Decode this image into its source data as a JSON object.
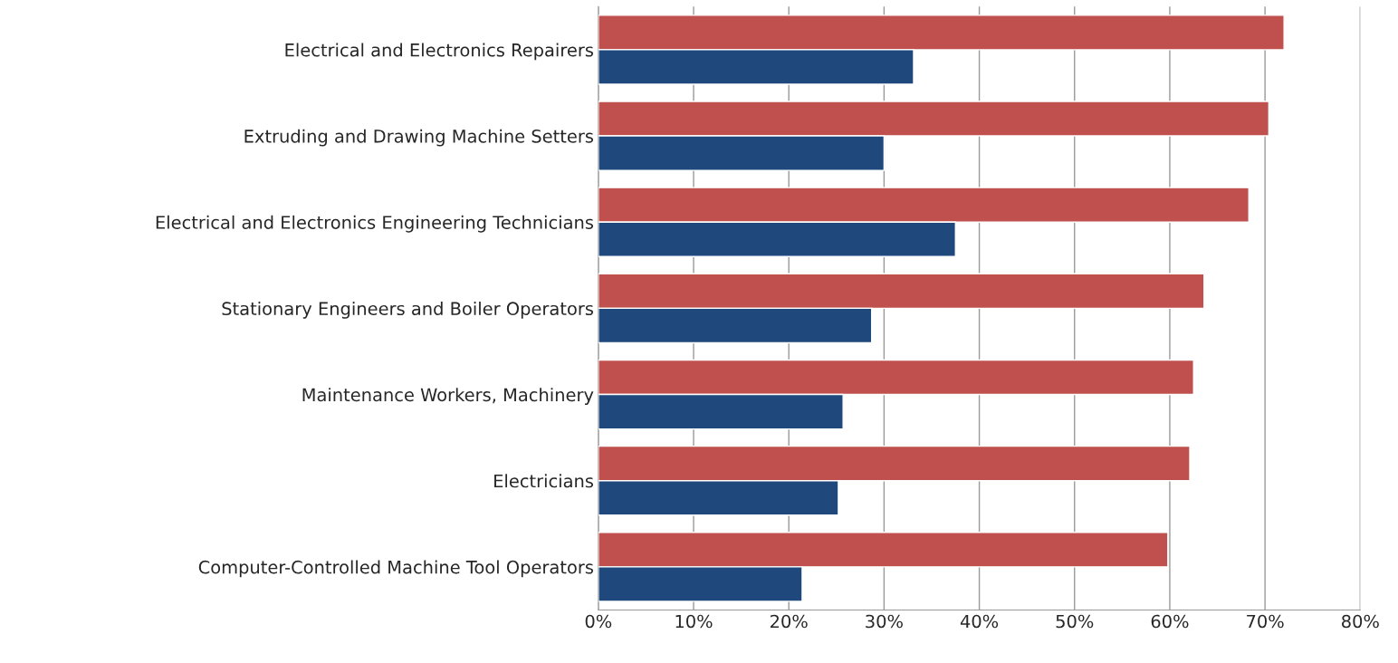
{
  "chart_data": {
    "type": "bar",
    "orientation": "horizontal",
    "categories": [
      "Electrical and Electronics Repairers",
      "Extruding and Drawing Machine Setters",
      "Electrical and Electronics Engineering Technicians",
      "Stationary Engineers and Boiler Operators",
      "Maintenance Workers, Machinery",
      "Electricians",
      "Computer-Controlled Machine Tool Operators"
    ],
    "series": [
      {
        "color": "#c0504d",
        "values": [
          72,
          70.4,
          68.3,
          63.6,
          62.5,
          62.1,
          59.8
        ]
      },
      {
        "color": "#1f497d",
        "values": [
          33.1,
          30.0,
          37.5,
          28.7,
          25.7,
          25.2,
          21.4
        ]
      }
    ],
    "xlim": [
      0,
      80
    ],
    "xticks": [
      {
        "value": 0,
        "label": "0%"
      },
      {
        "value": 10,
        "label": "10%"
      },
      {
        "value": 20,
        "label": "20%"
      },
      {
        "value": 30,
        "label": "30%"
      },
      {
        "value": 40,
        "label": "40%"
      },
      {
        "value": 50,
        "label": "50%"
      },
      {
        "value": 60,
        "label": "60%"
      },
      {
        "value": 70,
        "label": "70%"
      },
      {
        "value": 80,
        "label": "80%"
      }
    ],
    "grid": "x"
  }
}
